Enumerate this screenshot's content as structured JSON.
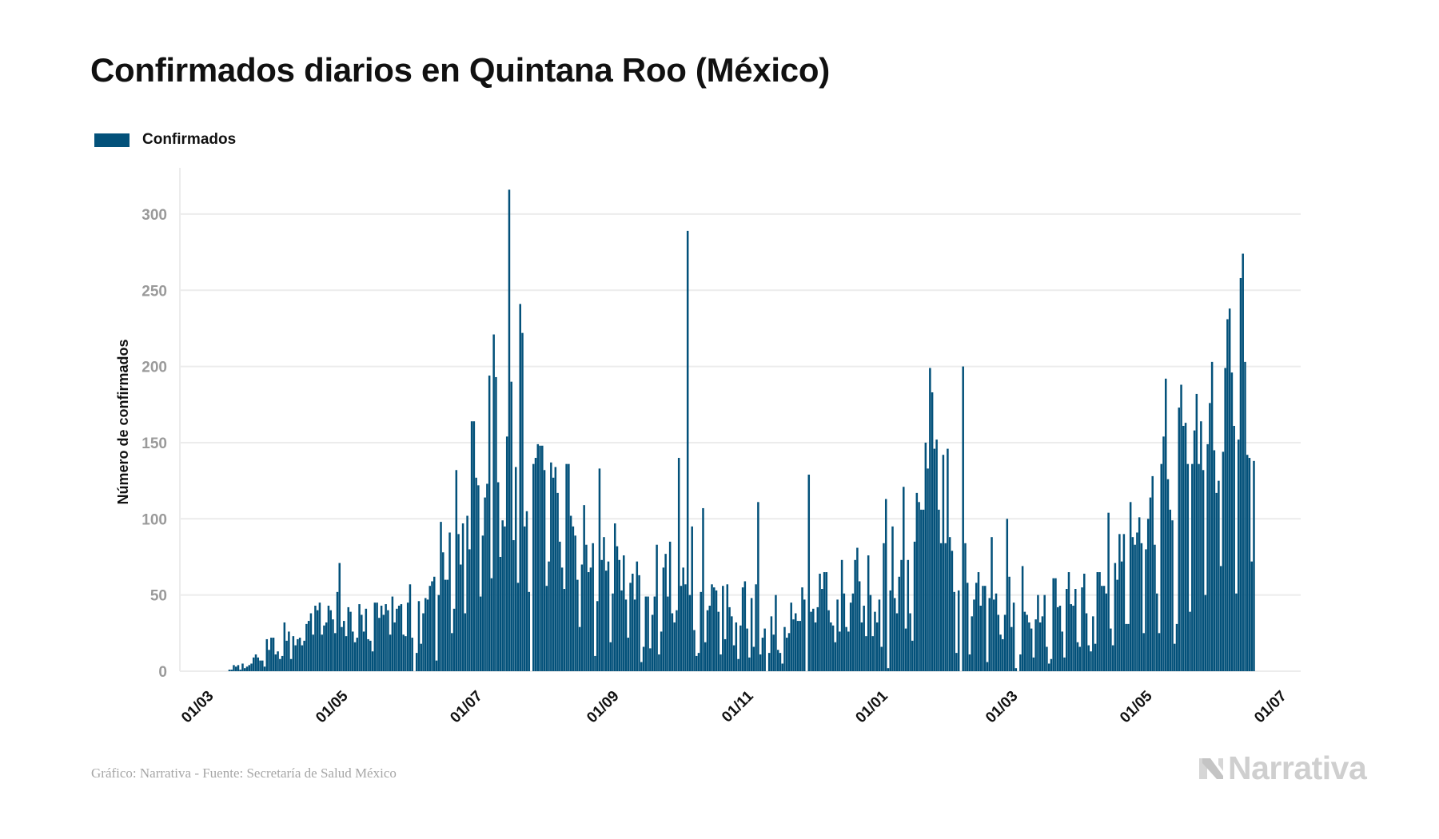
{
  "title": "Confirmados diarios en Quintana Roo (México)",
  "legend": {
    "label": "Confirmados",
    "color": "#03517A"
  },
  "footer": {
    "source": "Gráfico: Narrativa - Fuente: Secretaría de Salud México",
    "logo_text": "Narrativa"
  },
  "chart_data": {
    "type": "bar",
    "title": "Confirmados diarios en Quintana Roo (México)",
    "ylabel": "Número de confirmados",
    "xlabel": "",
    "ylim": [
      0,
      300
    ],
    "yticks": [
      "0",
      "50",
      "100",
      "150",
      "200",
      "250",
      "300"
    ],
    "xticks": [
      {
        "date": "2020-03-01",
        "label": "01/03"
      },
      {
        "date": "2020-05-01",
        "label": "01/05"
      },
      {
        "date": "2020-07-01",
        "label": "01/07"
      },
      {
        "date": "2020-09-01",
        "label": "01/09"
      },
      {
        "date": "2020-11-01",
        "label": "01/11"
      },
      {
        "date": "2021-01-01",
        "label": "01/01"
      },
      {
        "date": "2021-03-01",
        "label": "01/03"
      },
      {
        "date": "2021-05-01",
        "label": "01/05"
      },
      {
        "date": "2021-07-01",
        "label": "01/07"
      }
    ],
    "xlim": [
      "2020-03-01",
      "2021-07-01"
    ],
    "grid": true,
    "legend_position": "top-left",
    "series": [
      {
        "name": "Confirmados",
        "color": "#03517A",
        "start_date": "2020-03-13",
        "frequency": "daily",
        "values": [
          1,
          1,
          4,
          3,
          4,
          1,
          5,
          2,
          3,
          4,
          5,
          9,
          11,
          9,
          7,
          7,
          3,
          21,
          14,
          22,
          22,
          11,
          13,
          8,
          10,
          32,
          20,
          26,
          8,
          23,
          17,
          21,
          22,
          17,
          20,
          31,
          33,
          38,
          24,
          43,
          40,
          45,
          24,
          30,
          32,
          43,
          40,
          34,
          25,
          52,
          71,
          29,
          33,
          23,
          42,
          39,
          26,
          19,
          22,
          44,
          37,
          26,
          41,
          21,
          20,
          13,
          45,
          45,
          35,
          43,
          37,
          44,
          40,
          24,
          49,
          32,
          41,
          43,
          44,
          24,
          23,
          45,
          57,
          22,
          0,
          12,
          46,
          18,
          38,
          48,
          47,
          56,
          59,
          62,
          7,
          50,
          98,
          78,
          60,
          60,
          91,
          25,
          41,
          132,
          90,
          70,
          97,
          38,
          102,
          80,
          164,
          164,
          127,
          122,
          49,
          89,
          114,
          123,
          194,
          61,
          221,
          193,
          124,
          75,
          99,
          95,
          154,
          316,
          190,
          86,
          134,
          58,
          241,
          222,
          95,
          105,
          52,
          0,
          136,
          140,
          149,
          148,
          148,
          132,
          56,
          72,
          137,
          127,
          134,
          117,
          85,
          68,
          54,
          136,
          136,
          102,
          95,
          89,
          60,
          29,
          70,
          109,
          83,
          65,
          68,
          84,
          10,
          46,
          133,
          73,
          88,
          66,
          72,
          19,
          51,
          97,
          82,
          73,
          53,
          76,
          47,
          22,
          58,
          64,
          47,
          72,
          63,
          6,
          16,
          49,
          49,
          15,
          37,
          49,
          83,
          11,
          26,
          68,
          77,
          49,
          85,
          38,
          32,
          40,
          140,
          56,
          68,
          57,
          289,
          50,
          95,
          27,
          10,
          12,
          52,
          107,
          19,
          40,
          43,
          57,
          55,
          53,
          39,
          11,
          56,
          21,
          57,
          42,
          36,
          17,
          32,
          8,
          30,
          55,
          59,
          28,
          9,
          48,
          16,
          57,
          111,
          11,
          22,
          28,
          0,
          12,
          36,
          24,
          50,
          14,
          12,
          5,
          29,
          22,
          25,
          45,
          34,
          38,
          33,
          33,
          55,
          47,
          0,
          129,
          39,
          41,
          32,
          42,
          64,
          54,
          65,
          65,
          40,
          32,
          30,
          19,
          47,
          26,
          73,
          51,
          29,
          26,
          45,
          51,
          73,
          81,
          59,
          32,
          43,
          23,
          76,
          50,
          23,
          39,
          32,
          47,
          16,
          84,
          113,
          2,
          53,
          95,
          48,
          38,
          62,
          73,
          121,
          28,
          73,
          38,
          20,
          85,
          117,
          111,
          106,
          106,
          150,
          133,
          199,
          183,
          146,
          152,
          106,
          84,
          142,
          84,
          146,
          88,
          79,
          52,
          12,
          53,
          0,
          200,
          84,
          58,
          11,
          36,
          47,
          58,
          65,
          43,
          56,
          56,
          6,
          48,
          88,
          47,
          51,
          37,
          24,
          21,
          37,
          100,
          62,
          29,
          45,
          2,
          0,
          11,
          69,
          39,
          37,
          32,
          28,
          9,
          34,
          50,
          32,
          36,
          50,
          16,
          5,
          8,
          61,
          61,
          42,
          43,
          26,
          9,
          54,
          65,
          44,
          43,
          54,
          19,
          16,
          55,
          64,
          38,
          17,
          13,
          36,
          18,
          65,
          65,
          56,
          56,
          51,
          104,
          28,
          17,
          71,
          60,
          90,
          72,
          90,
          31,
          31,
          111,
          88,
          83,
          91,
          101,
          84,
          25,
          80,
          100,
          114,
          128,
          83,
          51,
          25,
          136,
          154,
          192,
          126,
          106,
          99,
          18,
          31,
          173,
          188,
          161,
          163,
          136,
          39,
          136,
          158,
          182,
          136,
          164,
          132,
          50,
          149,
          176,
          203,
          145,
          117,
          125,
          69,
          144,
          199,
          231,
          238,
          196,
          161,
          51,
          152,
          258,
          274,
          203,
          142,
          140,
          72,
          138
        ]
      }
    ]
  }
}
